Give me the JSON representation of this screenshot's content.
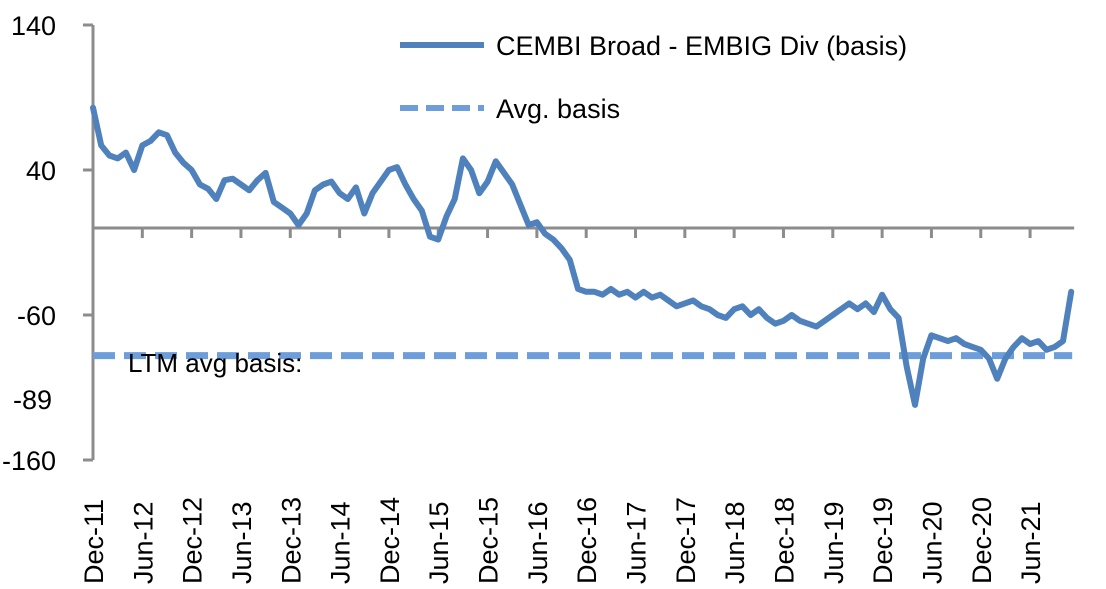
{
  "chart_data": {
    "type": "line",
    "title": "",
    "xlabel": "",
    "ylabel": "",
    "ylim": [
      -160,
      140
    ],
    "yticks": [
      140,
      40,
      -60,
      -160
    ],
    "ytick_labels": [
      "140",
      "40",
      "-60",
      "-160"
    ],
    "extra_label": "-89",
    "x_tick_labels": [
      "Dec-11",
      "Jun-12",
      "Dec-12",
      "Jun-13",
      "Dec-13",
      "Jun-14",
      "Dec-14",
      "Jun-15",
      "Dec-15",
      "Jun-16",
      "Dec-16",
      "Jun-17",
      "Dec-17",
      "Jun-18",
      "Dec-18",
      "Jun-19",
      "Dec-19",
      "Jun-20",
      "Dec-20",
      "Jun-21"
    ],
    "x_unit": "months since Dec-11",
    "x_range": [
      0,
      120
    ],
    "grid": false,
    "legend": {
      "placement": "top-right",
      "entries": [
        "CEMBI Broad - EMBIG Div (basis)",
        "Avg. basis"
      ]
    },
    "annotation": "LTM avg basis:",
    "colors": {
      "series": "#4f81bd",
      "avg": "#6d9edb",
      "axis": "#8c8c8c"
    },
    "series": [
      {
        "name": "CEMBI Broad - EMBIG Div (basis)",
        "style": "solid",
        "x": [
          0,
          1,
          2,
          3,
          4,
          5,
          6,
          7,
          8,
          9,
          10,
          11,
          12,
          13,
          14,
          15,
          16,
          17,
          18,
          19,
          20,
          21,
          22,
          23,
          24,
          25,
          26,
          27,
          28,
          29,
          30,
          31,
          32,
          33,
          34,
          35,
          36,
          37,
          38,
          39,
          40,
          41,
          42,
          43,
          44,
          45,
          46,
          47,
          48,
          49,
          50,
          51,
          52,
          53,
          54,
          55,
          56,
          57,
          58,
          59,
          60,
          61,
          62,
          63,
          64,
          65,
          66,
          67,
          68,
          69,
          70,
          71,
          72,
          73,
          74,
          75,
          76,
          77,
          78,
          79,
          80,
          81,
          82,
          83,
          84,
          85,
          86,
          87,
          88,
          89,
          90,
          91,
          92,
          93,
          94,
          95,
          96,
          97,
          98,
          99,
          100,
          101,
          102,
          103,
          104,
          105,
          106,
          107,
          108,
          109,
          110,
          111,
          112,
          113,
          114,
          115,
          116,
          117,
          118,
          119
        ],
        "values": [
          83,
          57,
          50,
          48,
          52,
          40,
          57,
          60,
          66,
          64,
          52,
          45,
          40,
          30,
          27,
          20,
          33,
          34,
          30,
          26,
          33,
          38,
          18,
          14,
          10,
          2,
          10,
          26,
          30,
          32,
          24,
          20,
          28,
          10,
          24,
          32,
          40,
          42,
          30,
          20,
          12,
          -6,
          -8,
          8,
          20,
          48,
          40,
          24,
          32,
          46,
          38,
          30,
          16,
          2,
          4,
          -4,
          -8,
          -14,
          -22,
          -42,
          -44,
          -44,
          -46,
          -42,
          -46,
          -44,
          -48,
          -44,
          -48,
          -46,
          -50,
          -54,
          -52,
          -50,
          -54,
          -56,
          -60,
          -62,
          -56,
          -54,
          -60,
          -56,
          -62,
          -66,
          -64,
          -60,
          -64,
          -66,
          -68,
          -64,
          -60,
          -56,
          -52,
          -56,
          -52,
          -58,
          -46,
          -56,
          -62,
          -96,
          -122,
          -90,
          -74,
          -76,
          -78,
          -76,
          -80,
          -82,
          -84,
          -90,
          -104,
          -90,
          -82,
          -76,
          -80,
          -78,
          -84,
          -82,
          -78,
          -44
        ]
      },
      {
        "name": "Avg. basis",
        "style": "dashed",
        "x": [
          0,
          119
        ],
        "values": [
          -88,
          -88
        ]
      }
    ]
  }
}
